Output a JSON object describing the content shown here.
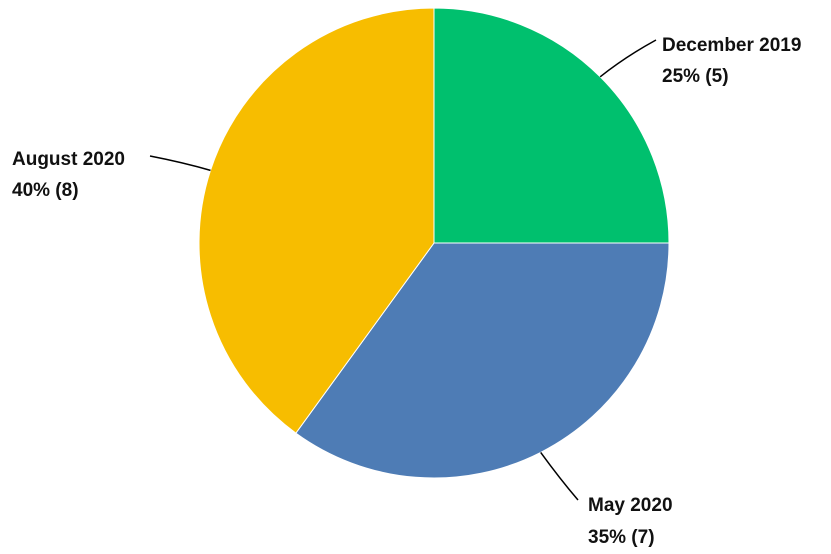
{
  "chart_data": {
    "type": "pie",
    "title": "",
    "categories": [
      "December 2019",
      "May 2020",
      "August 2020"
    ],
    "values": [
      5,
      7,
      8
    ],
    "percent_labels": [
      "25% (5)",
      "35% (7)",
      "40% (8)"
    ],
    "colors": [
      "#00c06e",
      "#4e7cb5",
      "#f7bd00"
    ],
    "start_angle_deg": 0,
    "direction": "clockwise",
    "legend": "none"
  }
}
